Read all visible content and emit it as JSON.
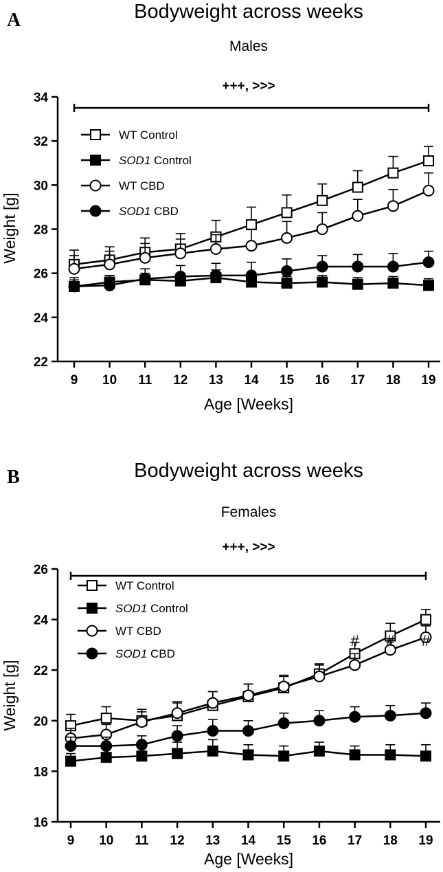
{
  "chart_data": [
    {
      "type": "line",
      "panel": "A",
      "title": "Bodyweight across weeks",
      "subtitle": "Males",
      "significance": "+++, >>>",
      "xlabel": "Age [Weeks]",
      "ylabel": "Weight [g]",
      "x": [
        9,
        10,
        11,
        12,
        13,
        14,
        15,
        16,
        17,
        18,
        19
      ],
      "ylim": [
        22,
        34
      ],
      "yticks": [
        22,
        24,
        26,
        28,
        30,
        32,
        34
      ],
      "legend_position": "top-left",
      "grid": false,
      "series": [
        {
          "name_italic": "",
          "name_rest": "WT Control",
          "marker": "square-open",
          "values": [
            26.4,
            26.6,
            26.95,
            27.1,
            27.65,
            28.2,
            28.75,
            29.3,
            29.9,
            30.55,
            31.1
          ],
          "err": [
            0.65,
            0.6,
            0.65,
            0.7,
            0.75,
            0.8,
            0.8,
            0.75,
            0.75,
            0.75,
            0.65
          ]
        },
        {
          "name_italic": "SOD1",
          "name_rest": " Control",
          "marker": "square-filled",
          "values": [
            25.4,
            25.6,
            25.7,
            25.65,
            25.8,
            25.6,
            25.55,
            25.6,
            25.5,
            25.55,
            25.45
          ],
          "err": [
            0.3,
            0.3,
            0.3,
            0.3,
            0.35,
            0.3,
            0.3,
            0.3,
            0.3,
            0.3,
            0.3
          ]
        },
        {
          "name_italic": "",
          "name_rest": "WT CBD",
          "marker": "circle-open",
          "values": [
            26.2,
            26.4,
            26.7,
            26.9,
            27.1,
            27.25,
            27.6,
            28.0,
            28.6,
            29.05,
            29.75
          ],
          "err": [
            0.6,
            0.6,
            0.65,
            0.65,
            0.65,
            0.75,
            0.75,
            0.75,
            0.75,
            0.75,
            0.8
          ]
        },
        {
          "name_italic": "SOD1",
          "name_rest": " CBD",
          "marker": "circle-filled",
          "values": [
            25.4,
            25.45,
            25.75,
            25.85,
            25.9,
            25.9,
            26.1,
            26.3,
            26.3,
            26.3,
            26.5
          ],
          "err": [
            0.4,
            0.45,
            0.45,
            0.5,
            0.55,
            0.6,
            0.55,
            0.5,
            0.55,
            0.6,
            0.5
          ]
        }
      ],
      "annotations": []
    },
    {
      "type": "line",
      "panel": "B",
      "title": "Bodyweight across weeks",
      "subtitle": "Females",
      "significance": "+++, >>>",
      "xlabel": "Age [Weeks]",
      "ylabel": "Weight [g]",
      "x": [
        9,
        10,
        11,
        12,
        13,
        14,
        15,
        16,
        17,
        18,
        19
      ],
      "ylim": [
        16,
        26
      ],
      "yticks": [
        16,
        18,
        20,
        22,
        24,
        26
      ],
      "legend_position": "top-left",
      "grid": false,
      "series": [
        {
          "name_italic": "",
          "name_rest": "WT Control",
          "marker": "square-open",
          "values": [
            19.8,
            20.1,
            20.0,
            20.2,
            20.6,
            20.95,
            21.3,
            21.85,
            22.65,
            23.35,
            24.0
          ],
          "err": [
            0.45,
            0.45,
            0.45,
            0.5,
            0.55,
            0.5,
            0.45,
            0.4,
            0.45,
            0.5,
            0.4
          ]
        },
        {
          "name_italic": "SOD1",
          "name_rest": " Control",
          "marker": "square-filled",
          "values": [
            18.4,
            18.55,
            18.6,
            18.7,
            18.8,
            18.65,
            18.6,
            18.8,
            18.65,
            18.65,
            18.6
          ],
          "err": [
            0.3,
            0.4,
            0.4,
            0.45,
            0.45,
            0.4,
            0.4,
            0.35,
            0.35,
            0.4,
            0.45
          ]
        },
        {
          "name_italic": "",
          "name_rest": "WT CBD",
          "marker": "circle-open",
          "values": [
            19.3,
            19.45,
            19.95,
            20.3,
            20.7,
            21.0,
            21.35,
            21.75,
            22.2,
            22.8,
            23.3
          ],
          "err": [
            0.4,
            0.4,
            0.4,
            0.45,
            0.45,
            0.45,
            0.45,
            0.45,
            0.45,
            0.45,
            0.45
          ]
        },
        {
          "name_italic": "SOD1",
          "name_rest": " CBD",
          "marker": "circle-filled",
          "values": [
            19.0,
            19.0,
            19.05,
            19.4,
            19.6,
            19.6,
            19.9,
            20.0,
            20.15,
            20.2,
            20.3
          ],
          "err": [
            0.35,
            0.35,
            0.35,
            0.4,
            0.45,
            0.4,
            0.4,
            0.4,
            0.4,
            0.4,
            0.4
          ]
        }
      ],
      "annotations": [
        {
          "x": 17,
          "text": "#"
        },
        {
          "x": 18,
          "text": "#"
        },
        {
          "x": 19,
          "text": "#"
        }
      ]
    }
  ]
}
